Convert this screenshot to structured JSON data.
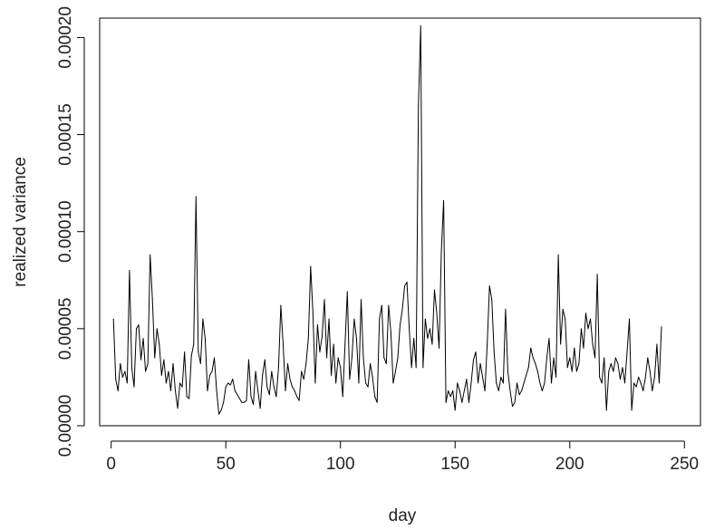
{
  "chart_data": {
    "type": "line",
    "title": "",
    "xlabel": "day",
    "ylabel": "realized variance",
    "xlim": [
      -5,
      257
    ],
    "ylim": [
      0,
      0.00021
    ],
    "grid": false,
    "legend": "none",
    "colors": {
      "line": "#000000",
      "frame": "#000000",
      "text": "#222222"
    },
    "x_ticks": [
      {
        "value": 0,
        "label": "0"
      },
      {
        "value": 50,
        "label": "50"
      },
      {
        "value": 100,
        "label": "100"
      },
      {
        "value": 150,
        "label": "150"
      },
      {
        "value": 200,
        "label": "200"
      },
      {
        "value": 250,
        "label": "250"
      }
    ],
    "y_ticks": [
      {
        "value": 0.0,
        "label": "0.00000"
      },
      {
        "value": 5e-05,
        "label": "0.00005"
      },
      {
        "value": 0.0001,
        "label": "0.00010"
      },
      {
        "value": 0.00015,
        "label": "0.00015"
      },
      {
        "value": 0.0002,
        "label": "0.00020"
      }
    ],
    "series": [
      {
        "x_start": 1,
        "x_step": 1,
        "values": [
          5.5e-05,
          2.4e-05,
          1.8e-05,
          3.2e-05,
          2.5e-05,
          2.8e-05,
          2.2e-05,
          8e-05,
          3e-05,
          2e-05,
          5e-05,
          5.2e-05,
          3.4e-05,
          4.5e-05,
          2.8e-05,
          3.2e-05,
          8.8e-05,
          6.5e-05,
          3.5e-05,
          5e-05,
          4.2e-05,
          2.6e-05,
          3.4e-05,
          2.2e-05,
          2.8e-05,
          1.8e-05,
          3.2e-05,
          1.8e-05,
          9e-06,
          2.2e-05,
          2e-05,
          3.8e-05,
          1.5e-05,
          1.4e-05,
          3.6e-05,
          4.2e-05,
          0.000118,
          3.8e-05,
          3.2e-05,
          5.5e-05,
          4.5e-05,
          1.8e-05,
          2.6e-05,
          2.8e-05,
          3.5e-05,
          1.8e-05,
          6e-06,
          8e-06,
          1.2e-05,
          2e-05,
          2.2e-05,
          2.1e-05,
          2.4e-05,
          1.8e-05,
          1.6e-05,
          1.4e-05,
          1.2e-05,
          1.2e-05,
          1.3e-05,
          3.4e-05,
          1.5e-05,
          1.1e-05,
          2.8e-05,
          1.8e-05,
          9e-06,
          2.6e-05,
          3.4e-05,
          2e-05,
          1.6e-05,
          2.8e-05,
          2e-05,
          1.5e-05,
          3e-05,
          6.2e-05,
          4.2e-05,
          1.8e-05,
          3.2e-05,
          2.4e-05,
          2e-05,
          1.8e-05,
          1.5e-05,
          1.3e-05,
          2.8e-05,
          2.4e-05,
          3.2e-05,
          4.5e-05,
          8.2e-05,
          5.8e-05,
          2.2e-05,
          5.2e-05,
          3.8e-05,
          4.6e-05,
          6.5e-05,
          3.5e-05,
          5.5e-05,
          2.6e-05,
          4.2e-05,
          2.2e-05,
          3.5e-05,
          3e-05,
          1.5e-05,
          4.2e-05,
          6.9e-05,
          2.4e-05,
          3.5e-05,
          5.5e-05,
          4.5e-05,
          2.2e-05,
          6.5e-05,
          3.5e-05,
          2.2e-05,
          2e-05,
          3.2e-05,
          2.5e-05,
          1.5e-05,
          1.2e-05,
          5.5e-05,
          6.2e-05,
          3.5e-05,
          3.2e-05,
          6.2e-05,
          4.8e-05,
          2.2e-05,
          2.8e-05,
          3.5e-05,
          5.2e-05,
          6e-05,
          7.2e-05,
          7.4e-05,
          5e-05,
          3e-05,
          4.5e-05,
          3e-05,
          0.000165,
          0.000206,
          3e-05,
          5.5e-05,
          4.5e-05,
          5e-05,
          4.2e-05,
          7e-05,
          5.8e-05,
          4e-05,
          9e-05,
          0.000116,
          1.2e-05,
          1.8e-05,
          1.5e-05,
          1.8e-05,
          8e-06,
          2.2e-05,
          1.8e-05,
          1.2e-05,
          1.8e-05,
          2.4e-05,
          1.2e-05,
          2.2e-05,
          3.4e-05,
          3.8e-05,
          2.2e-05,
          3.2e-05,
          2.5e-05,
          1.8e-05,
          4.2e-05,
          7.2e-05,
          6.5e-05,
          3.8e-05,
          2.2e-05,
          1.8e-05,
          2.5e-05,
          2.2e-05,
          6e-05,
          2.8e-05,
          1.8e-05,
          1e-05,
          1.2e-05,
          2.2e-05,
          1.6e-05,
          1.8e-05,
          2.2e-05,
          2.6e-05,
          3e-05,
          4e-05,
          3.5e-05,
          3.2e-05,
          2.8e-05,
          2.2e-05,
          1.8e-05,
          2.2e-05,
          3.5e-05,
          4.5e-05,
          2.2e-05,
          3.5e-05,
          2.5e-05,
          8.8e-05,
          4.2e-05,
          6e-05,
          5.5e-05,
          3e-05,
          3.5e-05,
          2.8e-05,
          4e-05,
          2.8e-05,
          3.2e-05,
          5e-05,
          4e-05,
          5.8e-05,
          5e-05,
          5.5e-05,
          4.2e-05,
          3.5e-05,
          7.8e-05,
          2.5e-05,
          2.2e-05,
          3.5e-05,
          8e-06,
          2.8e-05,
          3.2e-05,
          2.8e-05,
          3.5e-05,
          3.2e-05,
          2.4e-05,
          3e-05,
          2.2e-05,
          3.8e-05,
          5.5e-05,
          8e-06,
          2.2e-05,
          2e-05,
          2.5e-05,
          2.2e-05,
          1.8e-05,
          2.5e-05,
          3.5e-05,
          2.8e-05,
          1.8e-05,
          2.5e-05,
          4.2e-05,
          2.2e-05,
          5.1e-05
        ]
      }
    ]
  }
}
